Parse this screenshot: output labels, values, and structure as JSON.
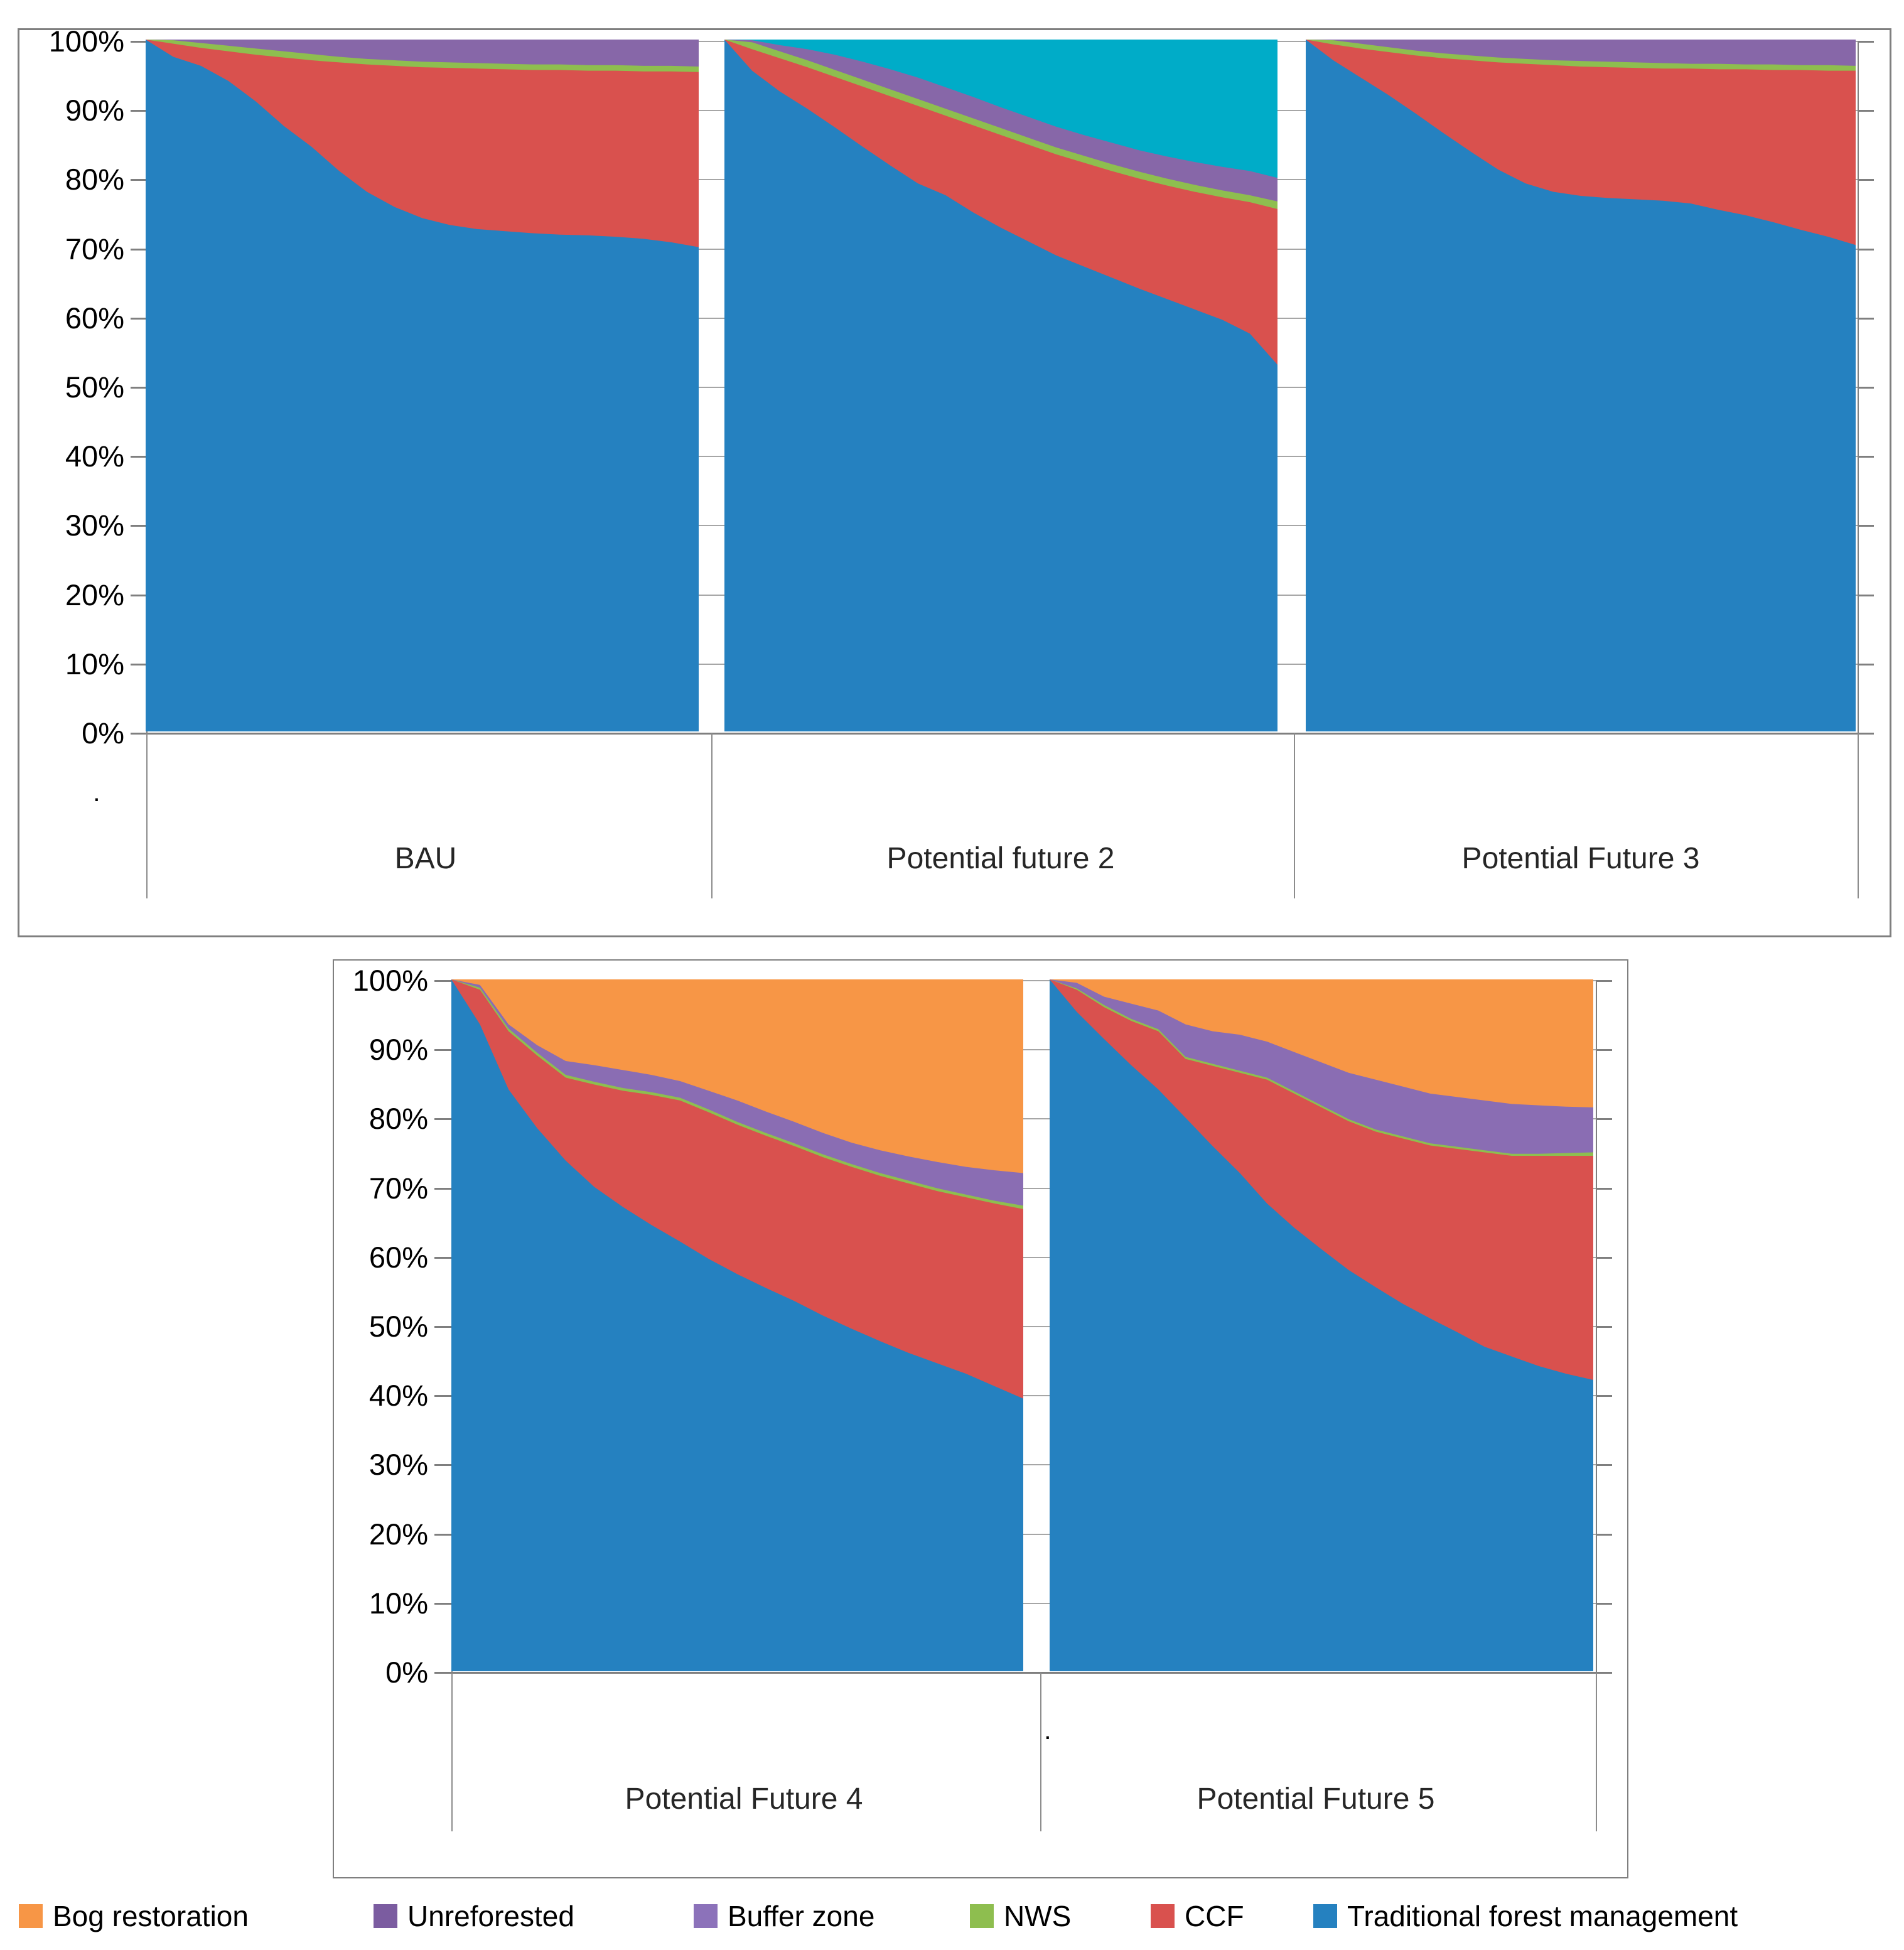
{
  "figure": {
    "description_visible_text_only": true,
    "y_axis": {
      "min_label": "0%",
      "max_label": "100%"
    }
  },
  "panels": [
    {
      "id": "top",
      "y_ticks": [
        "100%",
        "90%",
        "80%",
        "70%",
        "60%",
        "50%",
        "40%",
        "30%",
        "20%",
        "10%",
        "0%"
      ]
    },
    {
      "id": "bottom",
      "y_ticks": [
        "100%",
        "90%",
        "80%",
        "70%",
        "60%",
        "50%",
        "40%",
        "30%",
        "20%",
        "10%",
        "0%"
      ]
    }
  ],
  "decorations": {
    "top_dot": ".",
    "bottom_dot": "."
  },
  "palette": {
    "blue": "#2581C0",
    "red": "#D9514E",
    "green": "#8EBE4F",
    "purple_top_panel": "#8767A8",
    "purple_bottom_panel": "#8A6DB3",
    "teal": "#00ACC8",
    "orange": "#F79646",
    "legend_unreforested": "#7B5CA0",
    "legend_buffer_zone": "#8C72BA",
    "axis_gray": "#7F7F7F",
    "gridline_gray": "#A6A6A6"
  },
  "legend": {
    "items": [
      {
        "label": "Bog restoration",
        "color": "#F79646"
      },
      {
        "label": "Unreforested",
        "color": "#7B5CA0"
      },
      {
        "label": "Buffer zone",
        "color": "#8C72BA"
      },
      {
        "label": "NWS",
        "color": "#8EBE4F"
      },
      {
        "label": "CCF",
        "color": "#D9514E"
      },
      {
        "label": "Traditional forest management",
        "color": "#2581C0"
      }
    ]
  },
  "chart_data": [
    {
      "id": "bau",
      "title": "BAU",
      "type": "area",
      "stacking": "100%_stacked",
      "panel": "top",
      "ylim": [
        0,
        100
      ],
      "x_percent_of_width": [
        0,
        5,
        10,
        15,
        20,
        25,
        30,
        35,
        40,
        45,
        50,
        55,
        60,
        65,
        70,
        75,
        80,
        85,
        90,
        95,
        100
      ],
      "series": [
        {
          "name": "Traditional forest management",
          "color": "#2581C0",
          "cumulative_top_percent": [
            100,
            97.5,
            96.2,
            94.0,
            91.0,
            87.5,
            84.5,
            81.0,
            78.0,
            75.8,
            74.2,
            73.2,
            72.6,
            72.3,
            72.0,
            71.8,
            71.7,
            71.5,
            71.2,
            70.7,
            70.0
          ]
        },
        {
          "name": "CCF",
          "color": "#D9514E",
          "cumulative_top_percent": [
            100,
            99.4,
            98.8,
            98.3,
            97.8,
            97.4,
            97.0,
            96.7,
            96.4,
            96.2,
            96.0,
            95.9,
            95.8,
            95.7,
            95.6,
            95.6,
            95.5,
            95.5,
            95.4,
            95.4,
            95.3
          ]
        },
        {
          "name": "NWS",
          "color": "#8EBE4F",
          "cumulative_top_percent": [
            100,
            99.9,
            99.5,
            99.1,
            98.7,
            98.3,
            97.9,
            97.5,
            97.2,
            97.0,
            96.8,
            96.7,
            96.6,
            96.5,
            96.4,
            96.4,
            96.3,
            96.3,
            96.2,
            96.2,
            96.1
          ]
        },
        {
          "name": "Buffer zone",
          "color": "#8767A8",
          "cumulative_top_percent": [
            100,
            100,
            100,
            100,
            100,
            100,
            100,
            100,
            100,
            100,
            100,
            100,
            100,
            100,
            100,
            100,
            100,
            100,
            100,
            100,
            100
          ]
        }
      ]
    },
    {
      "id": "pf2",
      "title": "Potential future 2",
      "type": "area",
      "stacking": "100%_stacked",
      "panel": "top",
      "ylim": [
        0,
        100
      ],
      "x_percent_of_width": [
        0,
        5,
        10,
        15,
        20,
        25,
        30,
        35,
        40,
        45,
        50,
        55,
        60,
        65,
        70,
        75,
        80,
        85,
        90,
        95,
        100
      ],
      "series": [
        {
          "name": "Traditional forest management",
          "color": "#2581C0",
          "cumulative_top_percent": [
            100,
            95.5,
            92.5,
            90.0,
            87.3,
            84.5,
            81.8,
            79.2,
            77.5,
            75.0,
            72.8,
            70.8,
            68.8,
            67.2,
            65.6,
            64.0,
            62.5,
            61.0,
            59.5,
            57.5,
            53.0
          ]
        },
        {
          "name": "CCF",
          "color": "#D9514E",
          "cumulative_top_percent": [
            100,
            98.6,
            97.3,
            96.0,
            94.6,
            93.2,
            91.8,
            90.4,
            89.0,
            87.6,
            86.2,
            84.8,
            83.4,
            82.2,
            81.0,
            79.9,
            78.9,
            78.0,
            77.2,
            76.5,
            75.5
          ]
        },
        {
          "name": "NWS",
          "color": "#8EBE4F",
          "cumulative_top_percent": [
            100,
            99.6,
            98.3,
            97.0,
            95.6,
            94.2,
            92.8,
            91.4,
            90.0,
            88.6,
            87.2,
            85.8,
            84.4,
            83.2,
            82.0,
            80.9,
            79.9,
            79.0,
            78.2,
            77.5,
            76.6
          ]
        },
        {
          "name": "Buffer zone",
          "color": "#8767A8",
          "cumulative_top_percent": [
            100,
            99.9,
            99.2,
            98.6,
            97.8,
            96.8,
            95.7,
            94.5,
            93.1,
            91.7,
            90.2,
            88.8,
            87.4,
            86.2,
            85.1,
            84.0,
            83.1,
            82.3,
            81.6,
            81.0,
            80.0
          ]
        },
        {
          "name": "(teal series, no legend entry shown)",
          "color": "#00ACC8",
          "cumulative_top_percent": [
            100,
            100,
            100,
            100,
            100,
            100,
            100,
            100,
            100,
            100,
            100,
            100,
            100,
            100,
            100,
            100,
            100,
            100,
            100,
            100,
            100
          ]
        }
      ]
    },
    {
      "id": "pf3",
      "title": "Potential Future 3",
      "type": "area",
      "stacking": "100%_stacked",
      "panel": "top",
      "ylim": [
        0,
        100
      ],
      "x_percent_of_width": [
        0,
        5,
        10,
        15,
        20,
        25,
        30,
        35,
        40,
        45,
        50,
        55,
        60,
        65,
        70,
        75,
        80,
        85,
        90,
        95,
        100
      ],
      "series": [
        {
          "name": "Traditional forest management",
          "color": "#2581C0",
          "cumulative_top_percent": [
            100,
            97.0,
            94.5,
            92.0,
            89.3,
            86.5,
            83.8,
            81.2,
            79.2,
            78.0,
            77.4,
            77.1,
            76.9,
            76.7,
            76.3,
            75.4,
            74.6,
            73.6,
            72.5,
            71.5,
            70.3
          ]
        },
        {
          "name": "CCF",
          "color": "#D9514E",
          "cumulative_top_percent": [
            100,
            99.3,
            98.7,
            98.2,
            97.7,
            97.3,
            97.0,
            96.7,
            96.5,
            96.3,
            96.1,
            96.0,
            95.9,
            95.8,
            95.8,
            95.7,
            95.7,
            95.6,
            95.6,
            95.5,
            95.5
          ]
        },
        {
          "name": "NWS",
          "color": "#8EBE4F",
          "cumulative_top_percent": [
            100,
            99.9,
            99.4,
            98.9,
            98.4,
            98.0,
            97.7,
            97.4,
            97.2,
            97.0,
            96.9,
            96.8,
            96.7,
            96.6,
            96.5,
            96.5,
            96.4,
            96.4,
            96.3,
            96.3,
            96.2
          ]
        },
        {
          "name": "Buffer zone",
          "color": "#8767A8",
          "cumulative_top_percent": [
            100,
            100,
            100,
            100,
            100,
            100,
            100,
            100,
            100,
            100,
            100,
            100,
            100,
            100,
            100,
            100,
            100,
            100,
            100,
            100,
            100
          ]
        }
      ]
    },
    {
      "id": "pf4",
      "title": "Potential Future 4",
      "type": "area",
      "stacking": "100%_stacked",
      "panel": "bottom",
      "ylim": [
        0,
        100
      ],
      "x_percent_of_width": [
        0,
        5,
        10,
        15,
        20,
        25,
        30,
        35,
        40,
        45,
        50,
        55,
        60,
        65,
        70,
        75,
        80,
        85,
        90,
        95,
        100
      ],
      "series": [
        {
          "name": "Traditional forest management",
          "color": "#2581C0",
          "cumulative_top_percent": [
            100,
            93.5,
            84.1,
            78.5,
            73.8,
            70.0,
            67.1,
            64.5,
            62.1,
            59.6,
            57.4,
            55.4,
            53.5,
            51.4,
            49.5,
            47.7,
            46.0,
            44.5,
            43.0,
            41.2,
            39.4
          ]
        },
        {
          "name": "CCF",
          "color": "#D9514E",
          "cumulative_top_percent": [
            100,
            98.5,
            92.5,
            89.0,
            85.8,
            84.8,
            83.9,
            83.3,
            82.5,
            80.8,
            79.0,
            77.4,
            75.9,
            74.3,
            72.9,
            71.6,
            70.5,
            69.4,
            68.5,
            67.6,
            66.8
          ]
        },
        {
          "name": "NWS",
          "color": "#8EBE4F",
          "cumulative_top_percent": [
            100,
            98.8,
            92.9,
            89.4,
            86.2,
            85.2,
            84.3,
            83.7,
            82.9,
            81.2,
            79.4,
            77.8,
            76.3,
            74.7,
            73.3,
            72.0,
            70.9,
            69.8,
            68.9,
            68.0,
            67.3
          ]
        },
        {
          "name": "Buffer zone",
          "color": "#8A6DB3",
          "cumulative_top_percent": [
            100,
            99.2,
            93.5,
            90.5,
            88.2,
            87.6,
            86.9,
            86.2,
            85.3,
            83.9,
            82.5,
            80.9,
            79.4,
            77.8,
            76.4,
            75.3,
            74.4,
            73.6,
            72.9,
            72.4,
            72.0
          ]
        },
        {
          "name": "Bog restoration",
          "color": "#F79646",
          "cumulative_top_percent": [
            100,
            100,
            100,
            100,
            100,
            100,
            100,
            100,
            100,
            100,
            100,
            100,
            100,
            100,
            100,
            100,
            100,
            100,
            100,
            100,
            100
          ]
        }
      ]
    },
    {
      "id": "pf5",
      "title": "Potential Future 5",
      "type": "area",
      "stacking": "100%_stacked",
      "panel": "bottom",
      "ylim": [
        0,
        100
      ],
      "x_percent_of_width": [
        0,
        5,
        10,
        15,
        20,
        25,
        30,
        35,
        40,
        45,
        50,
        55,
        60,
        65,
        70,
        75,
        80,
        85,
        90,
        95,
        100
      ],
      "series": [
        {
          "name": "Traditional forest management",
          "color": "#2581C0",
          "cumulative_top_percent": [
            100,
            95.3,
            91.4,
            87.6,
            84.1,
            80.0,
            75.9,
            72.0,
            67.6,
            64.1,
            61.0,
            58.0,
            55.5,
            53.1,
            51.0,
            49.0,
            46.9,
            45.5,
            44.1,
            43.0,
            42.1
          ]
        },
        {
          "name": "CCF",
          "color": "#D9514E",
          "cumulative_top_percent": [
            100,
            98.5,
            96.0,
            94.0,
            92.5,
            88.5,
            87.5,
            86.5,
            85.5,
            83.5,
            81.5,
            79.5,
            78.0,
            77.0,
            76.0,
            75.5,
            75.0,
            74.5,
            74.5,
            74.5,
            74.5
          ]
        },
        {
          "name": "NWS",
          "color": "#8EBE4F",
          "cumulative_top_percent": [
            100,
            98.7,
            96.3,
            94.3,
            92.8,
            88.8,
            87.8,
            86.8,
            85.8,
            83.8,
            81.8,
            79.8,
            78.3,
            77.3,
            76.3,
            75.8,
            75.3,
            74.8,
            74.8,
            74.9,
            75.0
          ]
        },
        {
          "name": "Buffer zone",
          "color": "#8A6DB3",
          "cumulative_top_percent": [
            100,
            99.5,
            97.5,
            96.5,
            95.5,
            93.5,
            92.5,
            92.0,
            91.0,
            89.5,
            88.0,
            86.5,
            85.5,
            84.5,
            83.5,
            83.0,
            82.5,
            82.0,
            81.8,
            81.6,
            81.5
          ]
        },
        {
          "name": "Bog restoration",
          "color": "#F79646",
          "cumulative_top_percent": [
            100,
            100,
            100,
            100,
            100,
            100,
            100,
            100,
            100,
            100,
            100,
            100,
            100,
            100,
            100,
            100,
            100,
            100,
            100,
            100,
            100
          ]
        }
      ]
    }
  ]
}
